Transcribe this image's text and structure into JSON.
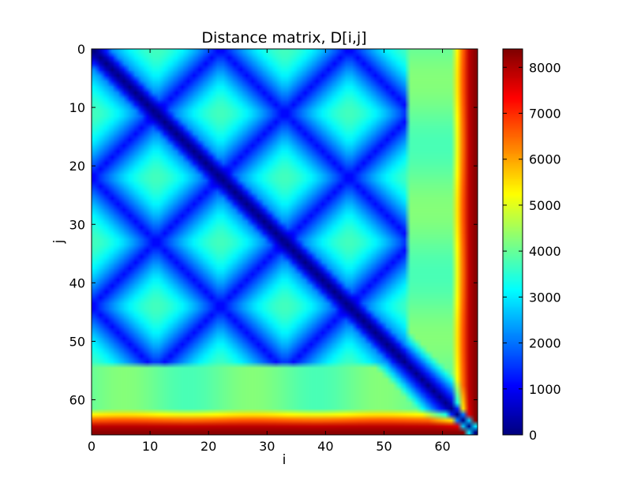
{
  "chart_data": {
    "type": "heatmap",
    "title": "Distance matrix, D[i,j]",
    "xlabel": "i",
    "ylabel": "j",
    "xlim": [
      0,
      66
    ],
    "ylim": [
      66,
      0
    ],
    "x_ticks": [
      0,
      10,
      20,
      30,
      40,
      50,
      60
    ],
    "y_ticks": [
      0,
      10,
      20,
      30,
      40,
      50,
      60
    ],
    "matrix_size": 66,
    "colormap": "jet",
    "colorbar": {
      "min": 0,
      "max": 8400,
      "ticks": [
        0,
        1000,
        2000,
        3000,
        4000,
        5000,
        6000,
        7000,
        8000
      ]
    },
    "structure": {
      "periodic_vertex_indices": [
        5,
        16,
        27,
        38,
        49
      ],
      "valley_value": 1100,
      "plateau_value": 3700,
      "regime_break_index": 54,
      "outer_ring_index": 63,
      "outer_ring_peak_value": 8300,
      "zero_diagonal": true,
      "symmetric": true
    }
  }
}
